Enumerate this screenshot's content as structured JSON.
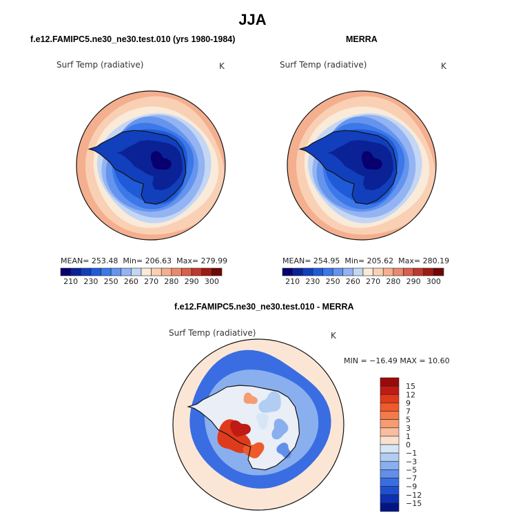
{
  "figure": {
    "title": "JJA",
    "field_name": "Surf Temp (radiative)",
    "units": "K"
  },
  "panels": [
    {
      "title": "f.e12.FAMIPC5.ne30_ne30.test.010 (yrs 1980-1984)",
      "stats": {
        "mean_label": "MEAN=",
        "mean": "253.48",
        "min_label": "Min=",
        "min": "206.63",
        "max_label": "Max=",
        "max": "279.99"
      }
    },
    {
      "title": "MERRA",
      "stats": {
        "mean_label": "MEAN=",
        "mean": "254.95",
        "min_label": "Min=",
        "min": "205.62",
        "max_label": "Max=",
        "max": "280.19"
      }
    },
    {
      "title": "f.e12.FAMIPC5.ne30_ne30.test.010 - MERRA",
      "stats_line": "MIN = −16.49 MAX =  10.60"
    }
  ],
  "chart_data": [
    {
      "type": "heatmap",
      "projection": "south polar stereographic",
      "title": "f.e12.FAMIPC5.ne30_ne30.test.010 (yrs 1980-1984)",
      "variable": "Surf Temp (radiative)",
      "units": "K",
      "mean": 253.48,
      "min": 206.63,
      "max": 279.99,
      "colorbar_levels": [
        210,
        220,
        230,
        240,
        250,
        255,
        260,
        265,
        270,
        275,
        280,
        285,
        290,
        295,
        300
      ],
      "colorbar_tick_labels": [
        "210",
        "230",
        "250",
        "260",
        "270",
        "280",
        "290",
        "300"
      ],
      "colorbar_colors": [
        "#08006e",
        "#0a2296",
        "#123fbb",
        "#1f5bd8",
        "#3c78e8",
        "#6494ee",
        "#93b3f2",
        "#c3d6f4",
        "#f9ead9",
        "#f9d0b4",
        "#f4af8f",
        "#ea8a6c",
        "#d9604b",
        "#bf3a2d",
        "#9d1b15",
        "#710606"
      ]
    },
    {
      "type": "heatmap",
      "projection": "south polar stereographic",
      "title": "MERRA",
      "variable": "Surf Temp (radiative)",
      "units": "K",
      "mean": 254.95,
      "min": 205.62,
      "max": 280.19,
      "colorbar_levels": [
        210,
        220,
        230,
        240,
        250,
        255,
        260,
        265,
        270,
        275,
        280,
        285,
        290,
        295,
        300
      ],
      "colorbar_tick_labels": [
        "210",
        "230",
        "250",
        "260",
        "270",
        "280",
        "290",
        "300"
      ],
      "colorbar_colors": [
        "#08006e",
        "#0a2296",
        "#123fbb",
        "#1f5bd8",
        "#3c78e8",
        "#6494ee",
        "#93b3f2",
        "#c3d6f4",
        "#f9ead9",
        "#f9d0b4",
        "#f4af8f",
        "#ea8a6c",
        "#d9604b",
        "#bf3a2d",
        "#9d1b15",
        "#710606"
      ]
    },
    {
      "type": "heatmap",
      "projection": "south polar stereographic",
      "title": "f.e12.FAMIPC5.ne30_ne30.test.010 - MERRA",
      "variable": "Surf Temp (radiative)",
      "units": "K",
      "min": -16.49,
      "max": 10.6,
      "colorbar_tick_labels": [
        "15",
        "12",
        "9",
        "7",
        "5",
        "3",
        "1",
        "0",
        "−1",
        "−3",
        "−5",
        "−7",
        "−9",
        "−12",
        "−15"
      ],
      "colorbar_colors": [
        "#9a0a0a",
        "#bf1a14",
        "#de3a1c",
        "#f05a2a",
        "#f47a4a",
        "#f59c72",
        "#f7bd9f",
        "#fae1cf",
        "#d6e6f7",
        "#b2cdf2",
        "#8aafee",
        "#628fea",
        "#3a6de2",
        "#1f4fd1",
        "#0d30b0",
        "#031583"
      ]
    }
  ]
}
